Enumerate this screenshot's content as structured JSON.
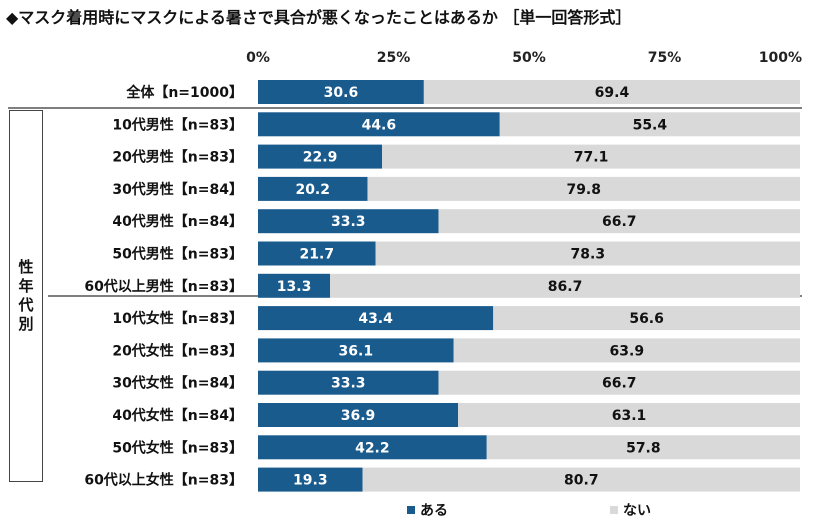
{
  "title": "◆マスク着用時にマスクによる暑さで具合が悪くなったことはあるか ［単一回答形式］",
  "colors": {
    "aru": "#1a5b8e",
    "nai": "#d9d9d9",
    "separator": "#555555"
  },
  "group_label": "性年代別",
  "legend": {
    "aru": "ある",
    "nai": "ない"
  },
  "chart_data": {
    "type": "bar",
    "orientation": "horizontal",
    "stacked": true,
    "percent": true,
    "xlim": [
      0,
      100
    ],
    "xticks": [
      "0%",
      "25%",
      "50%",
      "75%",
      "100%"
    ],
    "categories": [
      "全体【n=1000】",
      "10代男性【n=83】",
      "20代男性【n=83】",
      "30代男性【n=84】",
      "40代男性【n=84】",
      "50代男性【n=83】",
      "60代以上男性【n=83】",
      "10代女性【n=83】",
      "20代女性【n=83】",
      "30代女性【n=84】",
      "40代女性【n=84】",
      "50代女性【n=83】",
      "60代以上女性【n=83】"
    ],
    "series": [
      {
        "name": "ある",
        "values": [
          30.6,
          44.6,
          22.9,
          20.2,
          33.3,
          21.7,
          13.3,
          43.4,
          36.1,
          33.3,
          36.9,
          42.2,
          19.3
        ]
      },
      {
        "name": "ない",
        "values": [
          69.4,
          55.4,
          77.1,
          79.8,
          66.7,
          78.3,
          86.7,
          56.6,
          63.9,
          66.7,
          63.1,
          57.8,
          80.7
        ]
      }
    ],
    "legend_position": "bottom"
  }
}
